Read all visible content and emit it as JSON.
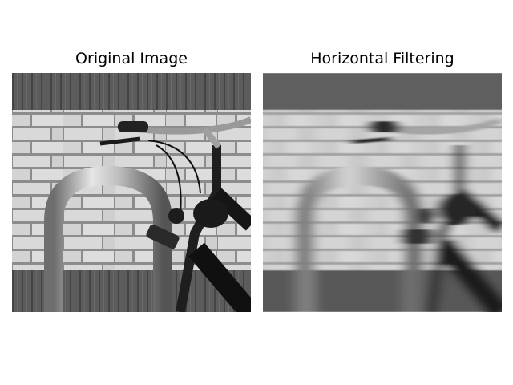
{
  "figure": {
    "panels": [
      {
        "title": "Original Image"
      },
      {
        "title": "Horizontal Filtering"
      }
    ],
    "colors": {
      "background": "#ffffff",
      "title_text": "#000000"
    }
  }
}
